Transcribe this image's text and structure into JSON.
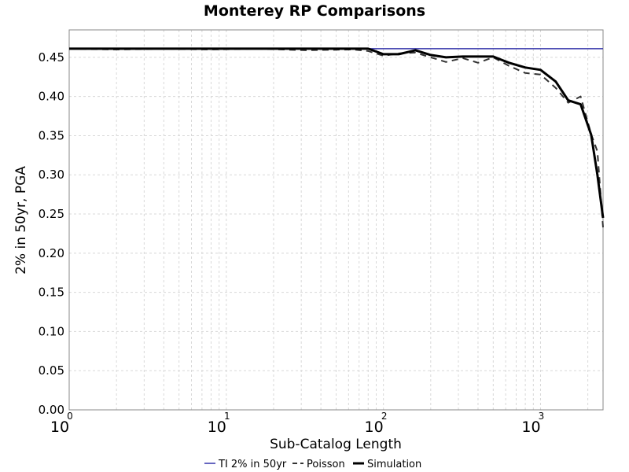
{
  "chart_data": {
    "type": "line",
    "title": "Monterey RP Comparisons",
    "xlabel": "Sub-Catalog Length",
    "ylabel": "2% in 50yr, PGA",
    "xscale": "log",
    "xlim": [
      1,
      2500
    ],
    "ylim": [
      0.0,
      0.485
    ],
    "yticks": [
      "0.00",
      "0.05",
      "0.10",
      "0.15",
      "0.20",
      "0.25",
      "0.30",
      "0.35",
      "0.40",
      "0.45"
    ],
    "xticks": [
      {
        "base": "10",
        "exp": "0"
      },
      {
        "base": "10",
        "exp": "1"
      },
      {
        "base": "10",
        "exp": "2"
      },
      {
        "base": "10",
        "exp": "3"
      }
    ],
    "grid": true,
    "legend_position": "bottom",
    "series": [
      {
        "name": "TI 2% in 50yr",
        "color": "#3333aa",
        "style": "solid",
        "x": [
          1,
          2500
        ],
        "y": [
          0.461,
          0.461
        ]
      },
      {
        "name": "Poisson",
        "color": "#333333",
        "style": "dashed",
        "x": [
          1,
          2,
          4,
          8,
          16,
          32,
          64,
          80,
          100,
          125,
          160,
          200,
          250,
          320,
          400,
          500,
          630,
          800,
          1000,
          1250,
          1500,
          1800,
          2100,
          2300,
          2500
        ],
        "y": [
          0.461,
          0.46,
          0.461,
          0.46,
          0.461,
          0.459,
          0.46,
          0.458,
          0.452,
          0.455,
          0.456,
          0.45,
          0.444,
          0.449,
          0.443,
          0.45,
          0.439,
          0.43,
          0.428,
          0.411,
          0.392,
          0.4,
          0.352,
          0.33,
          0.233
        ]
      },
      {
        "name": "Simulation",
        "color": "#000000",
        "style": "solid",
        "x": [
          1,
          10,
          80,
          100,
          125,
          160,
          200,
          250,
          320,
          400,
          500,
          630,
          800,
          1000,
          1250,
          1500,
          1800,
          2100,
          2300,
          2500
        ],
        "y": [
          0.461,
          0.461,
          0.461,
          0.454,
          0.454,
          0.459,
          0.453,
          0.45,
          0.451,
          0.451,
          0.451,
          0.443,
          0.437,
          0.434,
          0.419,
          0.395,
          0.39,
          0.351,
          0.3,
          0.245
        ]
      }
    ]
  }
}
